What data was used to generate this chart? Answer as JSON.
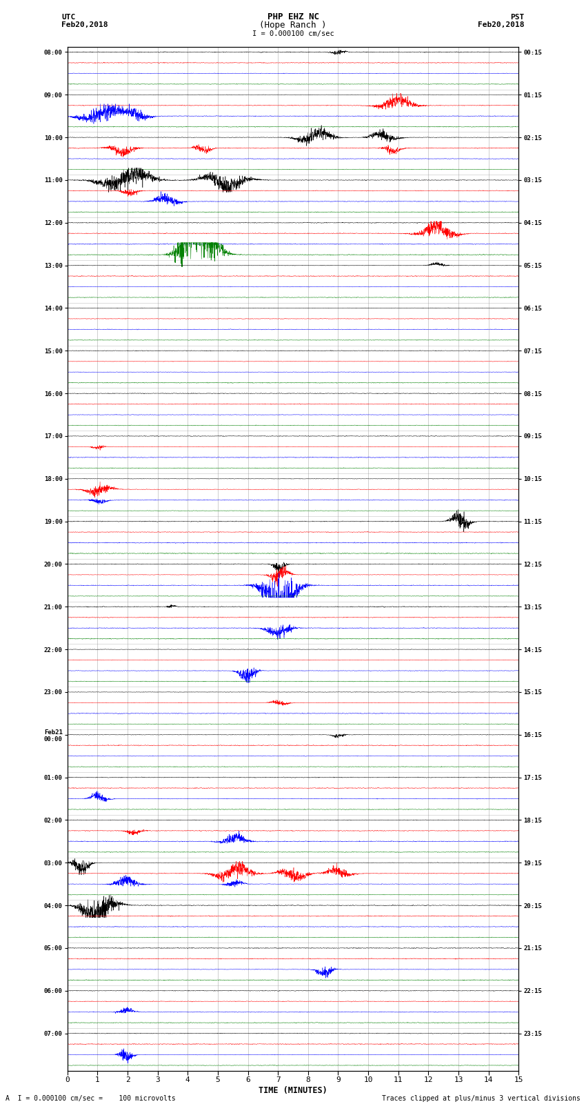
{
  "title_line1": "PHP EHZ NC",
  "title_line2": "(Hope Ranch )",
  "title_line3": "I = 0.000100 cm/sec",
  "left_header_line1": "UTC",
  "left_header_line2": "Feb20,2018",
  "right_header_line1": "PST",
  "right_header_line2": "Feb20,2018",
  "xlabel": "TIME (MINUTES)",
  "footer_left": "A  I = 0.000100 cm/sec =    100 microvolts",
  "footer_right": "Traces clipped at plus/minus 3 vertical divisions",
  "utc_times": [
    "08:00",
    "09:00",
    "10:00",
    "11:00",
    "12:00",
    "13:00",
    "14:00",
    "15:00",
    "16:00",
    "17:00",
    "18:00",
    "19:00",
    "20:00",
    "21:00",
    "22:00",
    "23:00",
    "Feb21\n00:00",
    "01:00",
    "02:00",
    "03:00",
    "04:00",
    "05:00",
    "06:00",
    "07:00"
  ],
  "pst_times": [
    "00:15",
    "01:15",
    "02:15",
    "03:15",
    "04:15",
    "05:15",
    "06:15",
    "07:15",
    "08:15",
    "09:15",
    "10:15",
    "11:15",
    "12:15",
    "13:15",
    "14:15",
    "15:15",
    "16:15",
    "17:15",
    "18:15",
    "19:15",
    "20:15",
    "21:15",
    "22:15",
    "23:15"
  ],
  "num_hours": 24,
  "traces_per_hour": 4,
  "trace_colors": [
    "black",
    "red",
    "blue",
    "green"
  ],
  "background_color": "white",
  "xlim": [
    0,
    15
  ],
  "xticks": [
    0,
    1,
    2,
    3,
    4,
    5,
    6,
    7,
    8,
    9,
    10,
    11,
    12,
    13,
    14,
    15
  ],
  "noise_base": 0.06,
  "seed": 12345
}
